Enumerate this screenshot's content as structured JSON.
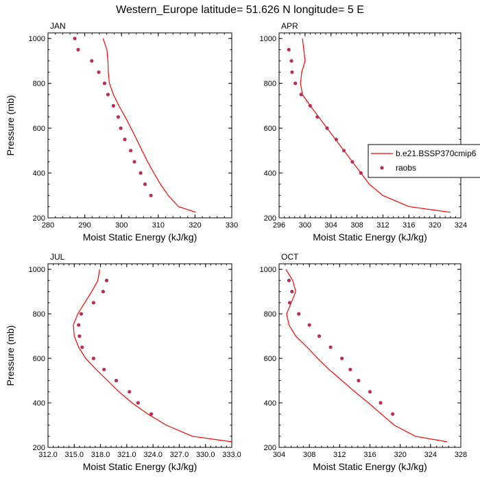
{
  "figure": {
    "title": "Western_Europe  latitude= 51.626 N longitude= 5 E"
  },
  "legend": {
    "entries": [
      {
        "label": "b.e21.BSSP370cmip6",
        "style": "line",
        "color": "#ff0000"
      },
      {
        "label": "raobs",
        "style": "marker",
        "color": "#b83055"
      }
    ]
  },
  "colors": {
    "model_line": "#ff0000",
    "obs_marker": "#b83055"
  },
  "chart_data": [
    {
      "type": "scatter",
      "panel": "JAN",
      "title": "JAN",
      "xlabel": "Moist Static Energy (kJ/kg)",
      "ylabel": "Pressure (mb)",
      "xlim": [
        280,
        330
      ],
      "ylim": [
        1025,
        200
      ],
      "y_inverted": true,
      "xticks": [
        280,
        290,
        300,
        310,
        320,
        330
      ],
      "xtick_labels": [
        "280",
        "290",
        "300",
        "310",
        "320",
        "330"
      ],
      "yticks": [
        200,
        400,
        600,
        800,
        1000
      ],
      "ytick_labels": [
        "200",
        "400",
        "600",
        "800",
        "1000"
      ],
      "series": [
        {
          "name": "b.e21.BSSP370cmip6",
          "style": "line",
          "x": [
            295.0,
            296.0,
            296.3,
            296.4,
            296.7,
            297.8,
            299.3,
            301.0,
            302.6,
            304.1,
            305.6,
            307.1,
            308.8,
            310.6,
            312.7,
            315.5,
            320.2
          ],
          "y": [
            1000,
            950,
            900,
            850,
            800,
            750,
            700,
            650,
            600,
            550,
            500,
            450,
            400,
            350,
            300,
            250,
            225
          ]
        },
        {
          "name": "raobs",
          "style": "marker",
          "x": [
            287.3,
            288.2,
            291.9,
            293.8,
            295.4,
            296.3,
            297.8,
            299.1,
            299.8,
            300.9,
            302.5,
            303.5,
            305.2,
            306.4,
            308.0
          ],
          "y": [
            1000,
            950,
            900,
            850,
            800,
            750,
            700,
            650,
            600,
            550,
            500,
            450,
            400,
            350,
            300
          ]
        }
      ]
    },
    {
      "type": "scatter",
      "panel": "APR",
      "title": "APR",
      "xlabel": "Moist Static Energy (kJ/kg)",
      "ylabel": "",
      "xlim": [
        296,
        324
      ],
      "ylim": [
        1025,
        200
      ],
      "y_inverted": true,
      "xticks": [
        296,
        300,
        304,
        308,
        312,
        316,
        320,
        324
      ],
      "xtick_labels": [
        "296",
        "300",
        "304",
        "308",
        "312",
        "316",
        "320",
        "324"
      ],
      "yticks": [
        200,
        400,
        600,
        800,
        1000
      ],
      "ytick_labels": [
        "200",
        "400",
        "600",
        "800",
        "1000"
      ],
      "series": [
        {
          "name": "b.e21.BSSP370cmip6",
          "style": "line",
          "x": [
            299.6,
            299.8,
            300.0,
            299.5,
            299.3,
            299.6,
            300.8,
            302.1,
            303.4,
            304.7,
            306.0,
            307.3,
            308.6,
            309.9,
            312.0,
            316.0,
            322.4
          ],
          "y": [
            1000,
            950,
            900,
            850,
            800,
            750,
            700,
            650,
            600,
            550,
            500,
            450,
            400,
            350,
            300,
            250,
            225
          ]
        },
        {
          "name": "raobs",
          "style": "marker",
          "x": [
            297.5,
            297.9,
            298.0,
            298.5,
            299.4,
            300.8,
            301.9,
            303.4,
            304.8,
            306.0,
            307.3,
            308.6
          ],
          "y": [
            950,
            900,
            850,
            800,
            750,
            700,
            650,
            600,
            550,
            500,
            450,
            400
          ]
        }
      ]
    },
    {
      "type": "scatter",
      "panel": "JUL",
      "title": "JUL",
      "xlabel": "Moist Static Energy (kJ/kg)",
      "ylabel": "Pressure (mb)",
      "xlim": [
        312,
        333
      ],
      "ylim": [
        1025,
        200
      ],
      "y_inverted": true,
      "xticks": [
        312,
        315,
        318,
        321,
        324,
        327,
        330,
        333
      ],
      "xtick_labels": [
        "312.0",
        "315.0",
        "318.0",
        "321.0",
        "324.0",
        "327.0",
        "330.0",
        "333.0"
      ],
      "yticks": [
        200,
        400,
        600,
        800,
        1000
      ],
      "ytick_labels": [
        "200",
        "400",
        "600",
        "800",
        "1000"
      ],
      "series": [
        {
          "name": "b.e21.BSSP370cmip6",
          "style": "line",
          "x": [
            317.9,
            317.7,
            317.0,
            316.2,
            315.4,
            314.9,
            315.0,
            315.5,
            316.3,
            317.5,
            318.8,
            320.1,
            321.6,
            323.4,
            325.5,
            328.5,
            333.0
          ],
          "y": [
            1000,
            950,
            900,
            850,
            800,
            750,
            700,
            650,
            600,
            550,
            500,
            450,
            400,
            350,
            300,
            250,
            225
          ]
        },
        {
          "name": "raobs",
          "style": "marker",
          "x": [
            318.7,
            318.3,
            317.2,
            315.8,
            315.5,
            315.6,
            315.9,
            317.2,
            318.4,
            319.8,
            321.3,
            322.3,
            323.8
          ],
          "y": [
            950,
            900,
            850,
            800,
            750,
            700,
            650,
            600,
            550,
            500,
            450,
            400,
            350
          ]
        }
      ]
    },
    {
      "type": "scatter",
      "panel": "OCT",
      "title": "OCT",
      "xlabel": "Moist Static Energy (kJ/kg)",
      "ylabel": "",
      "xlim": [
        304,
        328
      ],
      "ylim": [
        1025,
        200
      ],
      "y_inverted": true,
      "xticks": [
        304,
        308,
        312,
        316,
        320,
        324,
        328
      ],
      "xtick_labels": [
        "304",
        "308",
        "312",
        "316",
        "320",
        "324",
        "328"
      ],
      "yticks": [
        200,
        400,
        600,
        800,
        1000
      ],
      "ytick_labels": [
        "200",
        "400",
        "600",
        "800",
        "1000"
      ],
      "series": [
        {
          "name": "b.e21.BSSP370cmip6",
          "style": "line",
          "x": [
            304.9,
            305.8,
            306.2,
            305.6,
            305.0,
            305.3,
            306.2,
            307.7,
            309.1,
            310.6,
            312.3,
            314.0,
            315.8,
            317.5,
            319.2,
            322.0,
            326.2
          ],
          "y": [
            1000,
            950,
            900,
            850,
            800,
            750,
            700,
            650,
            600,
            550,
            500,
            450,
            400,
            350,
            300,
            250,
            225
          ]
        },
        {
          "name": "raobs",
          "style": "marker",
          "x": [
            305.3,
            305.7,
            305.4,
            306.6,
            308.0,
            309.3,
            310.8,
            312.3,
            313.4,
            314.5,
            316.0,
            317.4,
            319.0
          ],
          "y": [
            950,
            900,
            850,
            800,
            750,
            700,
            650,
            600,
            550,
            500,
            450,
            400,
            350
          ]
        }
      ]
    }
  ]
}
